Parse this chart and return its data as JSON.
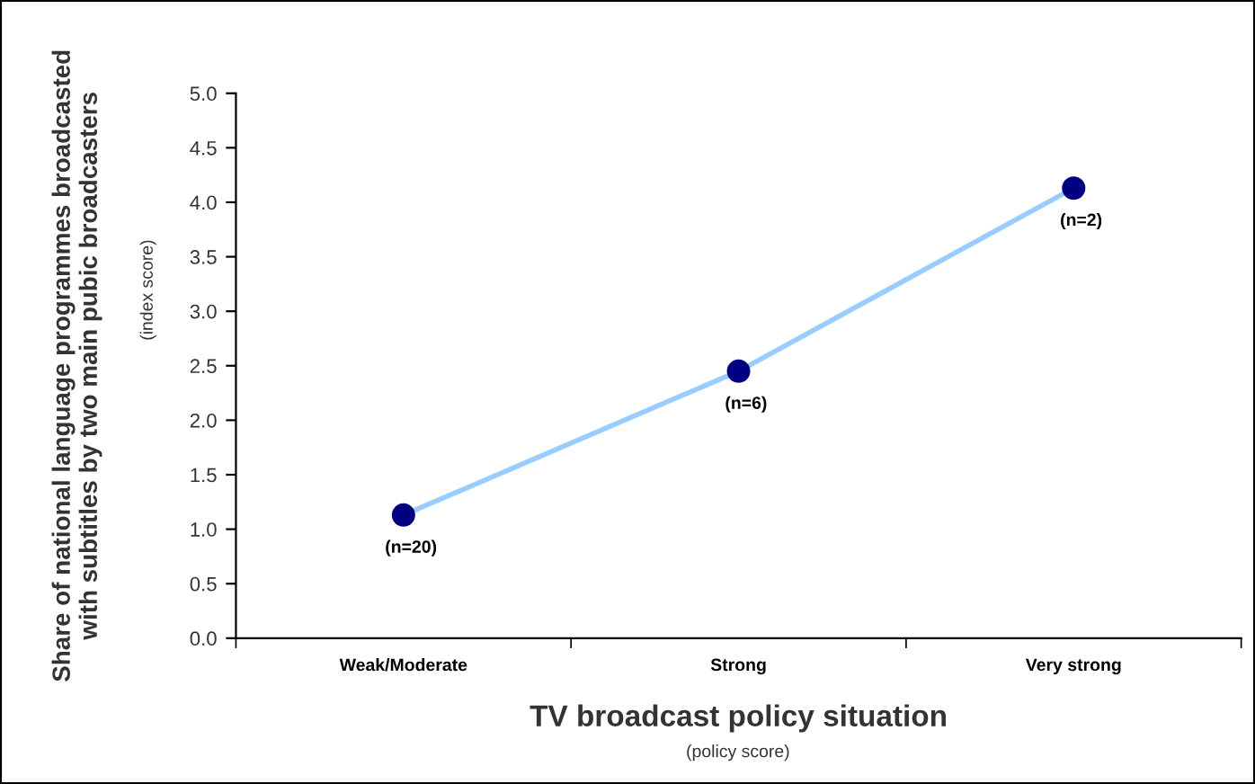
{
  "chart_data": {
    "type": "line",
    "xlabel": "TV broadcast policy situation",
    "ylabel": "Share of national language programmes broadcasted\nwith subtitles by two main pubic broadcasters",
    "categories": [
      "Weak/Moderate",
      "Strong",
      "Very strong"
    ],
    "series": [
      {
        "color": "#99ccff",
        "colors": [
          "#000080",
          "#000080",
          "#000080"
        ],
        "values": [
          1.13,
          2.45,
          4.13
        ]
      }
    ],
    "marker": "circle",
    "ylim": [
      0,
      5
    ],
    "yticks": [
      {
        "value": 0,
        "label": "0.0"
      },
      {
        "value": 0.5,
        "label": "0.5"
      },
      {
        "value": 1,
        "label": "1.0"
      },
      {
        "value": 1.5,
        "label": "1.5"
      },
      {
        "value": 2,
        "label": "2.0"
      },
      {
        "value": 2.5,
        "label": "2.5"
      },
      {
        "value": 3,
        "label": "3.0"
      },
      {
        "value": 3.5,
        "label": "3.5"
      },
      {
        "value": 4,
        "label": "4.0"
      },
      {
        "value": 4.5,
        "label": "4.5"
      },
      {
        "value": 5,
        "label": "5.0"
      }
    ],
    "grid": false,
    "legend": false,
    "annotations": [
      {
        "text": "(n=20)",
        "x": "Weak/Moderate",
        "y": 1.13
      },
      {
        "text": "(n=6)",
        "x": "Strong",
        "y": 2.45
      },
      {
        "text": "(n=2)",
        "x": "Very strong",
        "y": 4.13
      },
      "(index score)",
      "(policy score)"
    ]
  }
}
